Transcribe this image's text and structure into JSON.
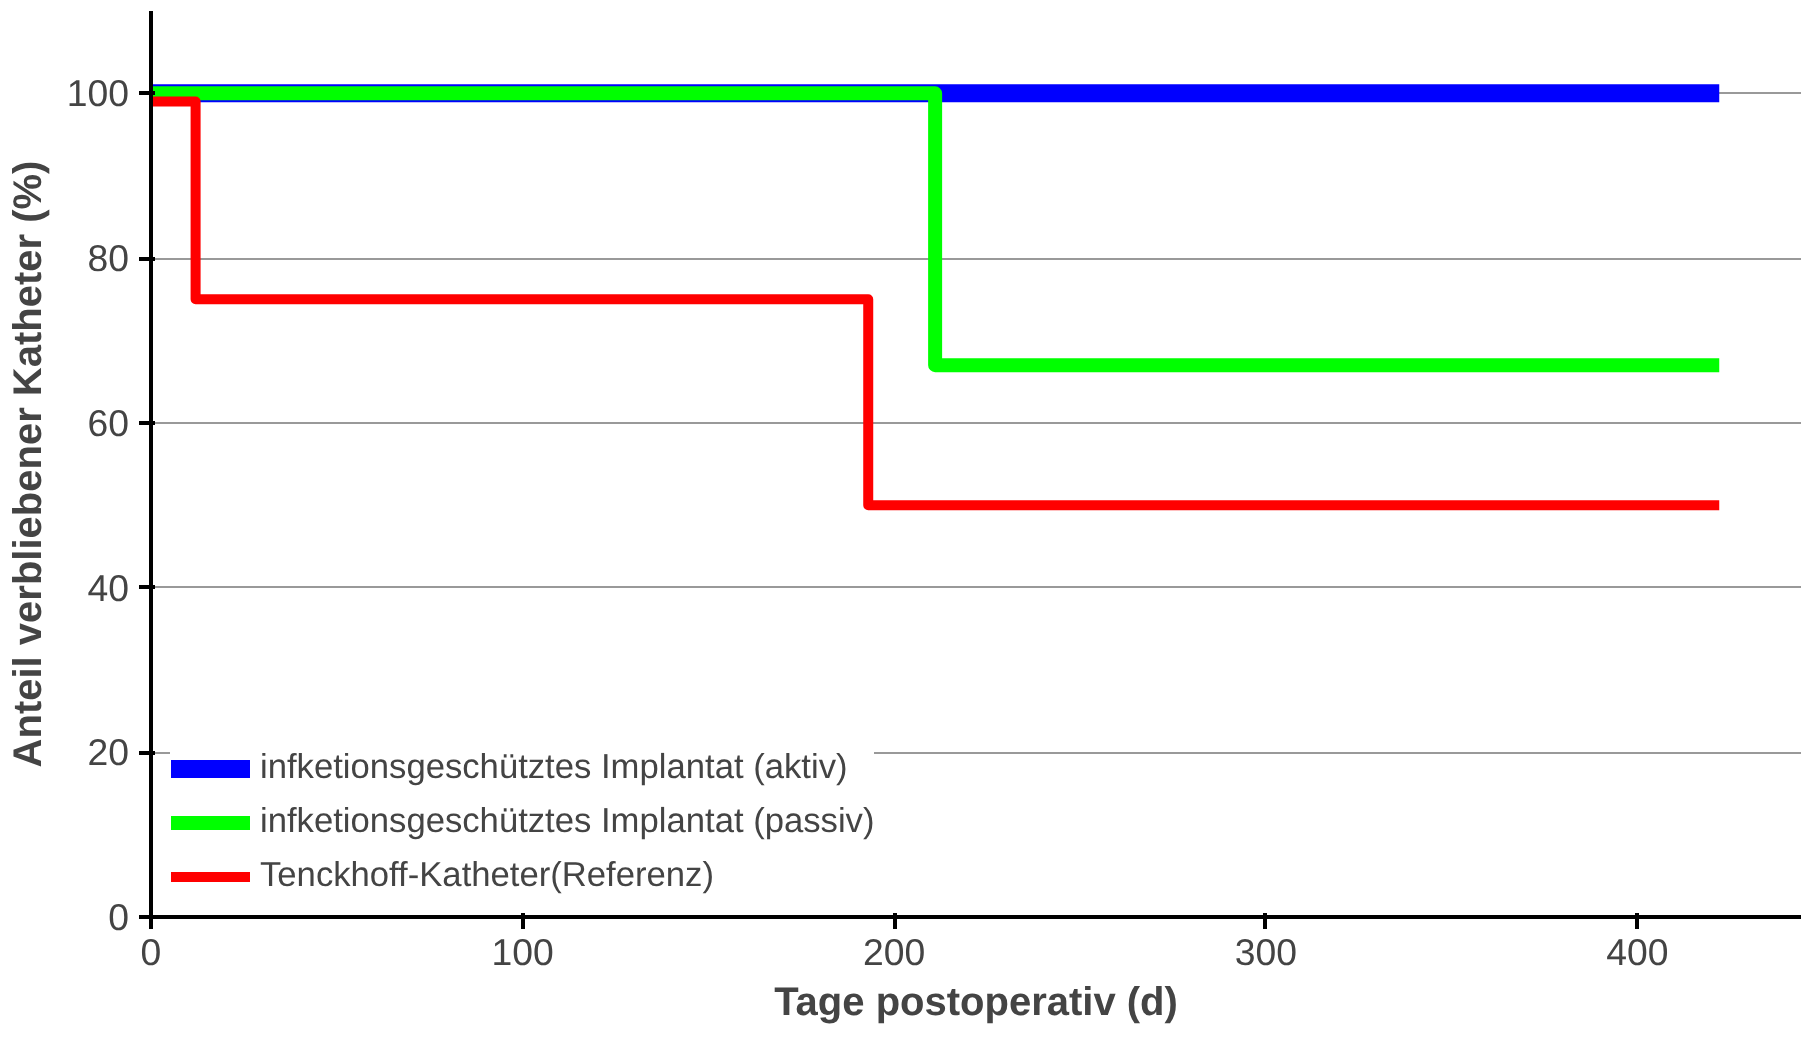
{
  "chart_data": {
    "type": "step",
    "xlabel": "Tage postoperativ (d)",
    "ylabel": "Anteil verbliebener Katheter (%)",
    "xlim": [
      0,
      444
    ],
    "xticks": [
      0,
      100,
      200,
      300,
      400
    ],
    "ylim": [
      0,
      110
    ],
    "yticks": [
      0,
      20,
      40,
      60,
      80,
      100
    ],
    "grid": "y",
    "legend": "bottom left",
    "line_style": "solid",
    "marker": "none",
    "series": [
      {
        "name": "infketionsgeschütztes Implantat (aktiv)",
        "color": "#0000ff",
        "x": [
          0,
          422
        ],
        "values": [
          100,
          100
        ]
      },
      {
        "name": "infketionsgeschütztes Implantat (passiv)",
        "color": "#00ff00",
        "x": [
          0,
          211,
          422
        ],
        "values": [
          100,
          67,
          67
        ]
      },
      {
        "name": "Tenckhoff-Katheter(Referenz)",
        "color": "#ff0000",
        "x": [
          0,
          12,
          193,
          422
        ],
        "values": [
          99,
          75,
          50,
          50
        ]
      }
    ]
  }
}
